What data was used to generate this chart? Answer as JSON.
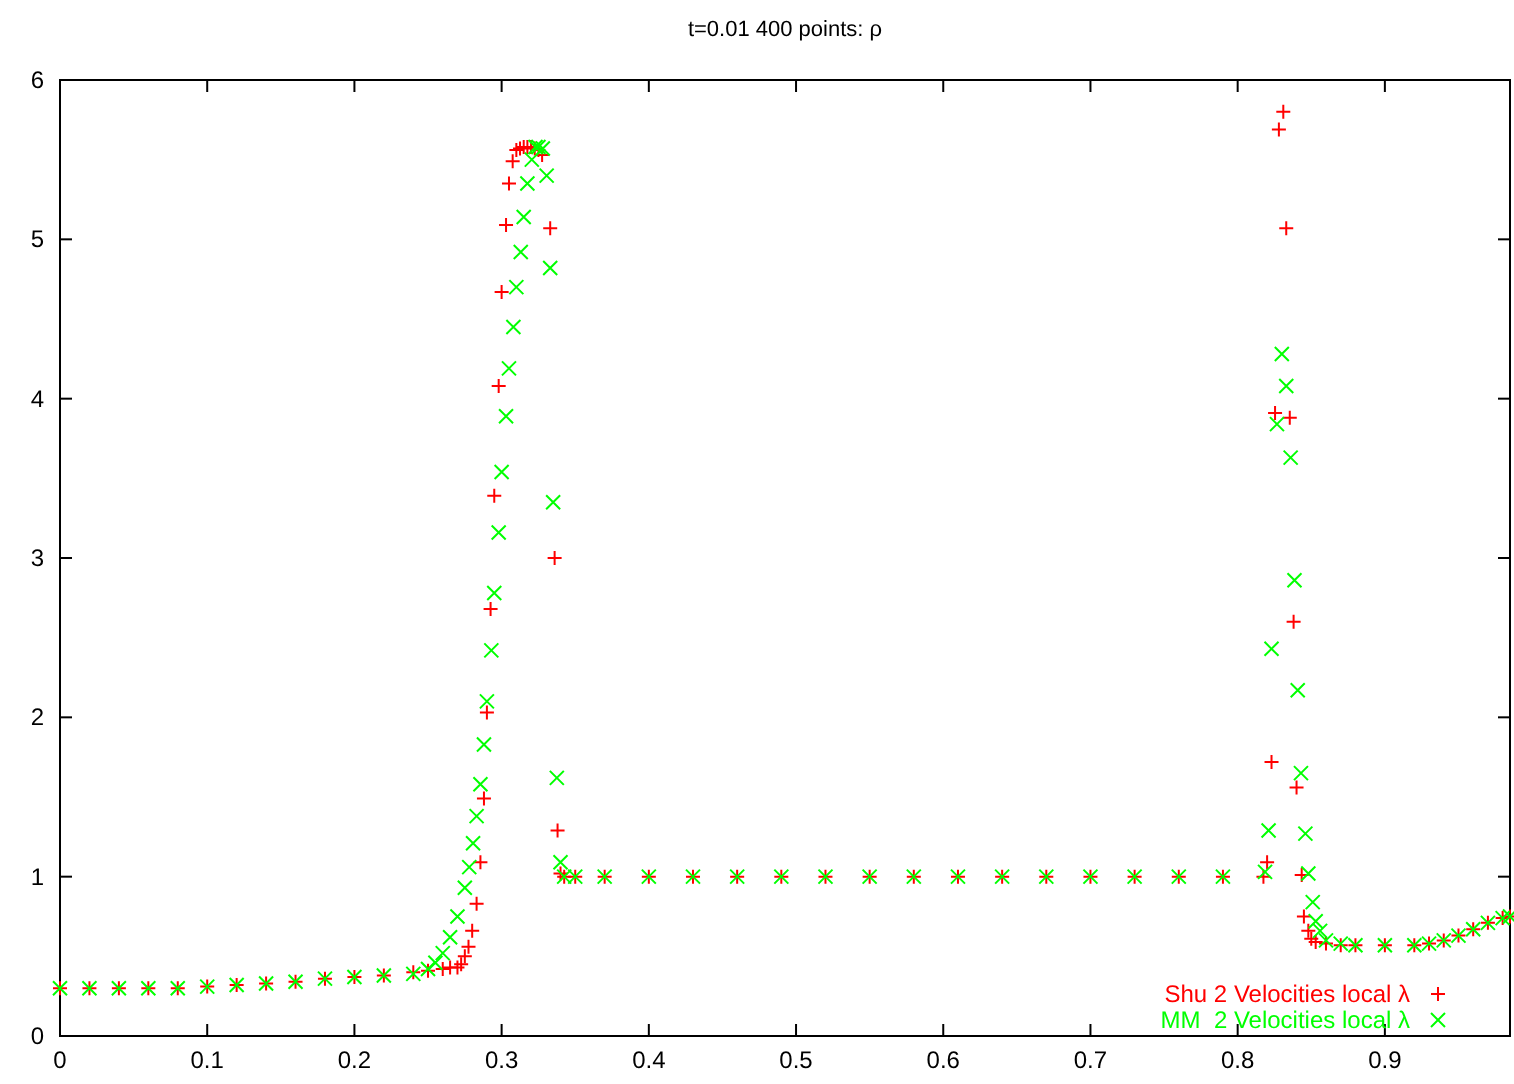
{
  "chart_data": {
    "type": "scatter",
    "title": "t=0.01 400 points: ρ",
    "xlim": [
      0,
      0.985
    ],
    "ylim": [
      0,
      6
    ],
    "xticks": [
      0,
      0.1,
      0.2,
      0.3,
      0.4,
      0.5,
      0.6,
      0.7,
      0.8,
      0.9
    ],
    "yticks": [
      0,
      1,
      2,
      3,
      4,
      5,
      6
    ],
    "grid": false,
    "legend": "bottom right",
    "series": [
      {
        "name": "Shu 2 Velocities local λ",
        "color": "#ff0000",
        "marker": "plus",
        "x": [
          0,
          0.02,
          0.04,
          0.06,
          0.08,
          0.1,
          0.12,
          0.14,
          0.16,
          0.18,
          0.2,
          0.22,
          0.24,
          0.25,
          0.26,
          0.265,
          0.27,
          0.2725,
          0.275,
          0.2775,
          0.28,
          0.283,
          0.2856,
          0.288,
          0.29,
          0.2925,
          0.295,
          0.298,
          0.3,
          0.303,
          0.305,
          0.3075,
          0.31,
          0.3125,
          0.315,
          0.3175,
          0.32,
          0.3225,
          0.325,
          0.3275,
          0.333,
          0.336,
          0.338,
          0.34,
          0.3425,
          0.35,
          0.37,
          0.4,
          0.43,
          0.46,
          0.49,
          0.52,
          0.55,
          0.58,
          0.61,
          0.64,
          0.67,
          0.7,
          0.73,
          0.76,
          0.79,
          0.8175,
          0.82,
          0.823,
          0.8254,
          0.828,
          0.831,
          0.833,
          0.8354,
          0.838,
          0.84,
          0.8435,
          0.845,
          0.848,
          0.85,
          0.853,
          0.86,
          0.87,
          0.88,
          0.9,
          0.92,
          0.93,
          0.94,
          0.95,
          0.96,
          0.97,
          0.98,
          0.985
        ],
        "values": [
          0.3,
          0.3,
          0.3,
          0.3,
          0.3,
          0.31,
          0.32,
          0.33,
          0.34,
          0.36,
          0.37,
          0.38,
          0.4,
          0.41,
          0.42,
          0.43,
          0.43,
          0.45,
          0.5,
          0.56,
          0.66,
          0.83,
          1.09,
          1.49,
          2.03,
          2.68,
          3.39,
          4.08,
          4.67,
          5.09,
          5.35,
          5.49,
          5.56,
          5.57,
          5.58,
          5.58,
          5.58,
          5.57,
          5.56,
          5.53,
          5.07,
          3,
          1.29,
          1.02,
          1,
          1,
          1,
          1,
          1,
          1,
          1,
          1,
          1,
          1,
          1,
          1,
          1,
          1,
          1,
          1,
          1,
          1,
          1.09,
          1.72,
          3.91,
          5.69,
          5.8,
          5.07,
          3.88,
          2.6,
          1.56,
          1.01,
          0.75,
          0.66,
          0.61,
          0.59,
          0.58,
          0.57,
          0.57,
          0.57,
          0.57,
          0.58,
          0.6,
          0.63,
          0.67,
          0.71,
          0.74,
          0.75
        ]
      },
      {
        "name": "MM  2 Velocities local λ",
        "color": "#00ff00",
        "marker": "cross",
        "x": [
          0,
          0.02,
          0.04,
          0.06,
          0.08,
          0.1,
          0.12,
          0.14,
          0.16,
          0.18,
          0.2,
          0.22,
          0.24,
          0.25,
          0.255,
          0.26,
          0.265,
          0.27,
          0.275,
          0.278,
          0.2806,
          0.283,
          0.2856,
          0.288,
          0.29,
          0.293,
          0.295,
          0.298,
          0.3,
          0.303,
          0.305,
          0.308,
          0.31,
          0.313,
          0.315,
          0.3175,
          0.3205,
          0.323,
          0.325,
          0.328,
          0.3306,
          0.333,
          0.335,
          0.3375,
          0.34,
          0.3425,
          0.35,
          0.37,
          0.4,
          0.43,
          0.46,
          0.49,
          0.52,
          0.55,
          0.58,
          0.61,
          0.64,
          0.67,
          0.7,
          0.73,
          0.76,
          0.79,
          0.8186,
          0.821,
          0.823,
          0.8267,
          0.83,
          0.833,
          0.836,
          0.8386,
          0.8408,
          0.843,
          0.846,
          0.848,
          0.851,
          0.853,
          0.856,
          0.86,
          0.87,
          0.88,
          0.9,
          0.92,
          0.93,
          0.94,
          0.95,
          0.96,
          0.97,
          0.98,
          0.985
        ],
        "values": [
          0.3,
          0.3,
          0.3,
          0.3,
          0.3,
          0.31,
          0.32,
          0.33,
          0.34,
          0.36,
          0.37,
          0.38,
          0.39,
          0.42,
          0.46,
          0.52,
          0.62,
          0.75,
          0.93,
          1.06,
          1.21,
          1.38,
          1.58,
          1.83,
          2.1,
          2.42,
          2.78,
          3.16,
          3.54,
          3.89,
          4.19,
          4.45,
          4.7,
          4.92,
          5.14,
          5.35,
          5.5,
          5.58,
          5.58,
          5.57,
          5.4,
          4.82,
          3.35,
          1.62,
          1.09,
          1,
          1,
          1,
          1,
          1,
          1,
          1,
          1,
          1,
          1,
          1,
          1,
          1,
          1,
          1,
          1,
          1,
          1.03,
          1.29,
          2.43,
          3.84,
          4.28,
          4.08,
          3.63,
          2.86,
          2.17,
          1.65,
          1.27,
          1.02,
          0.84,
          0.72,
          0.66,
          0.6,
          0.58,
          0.57,
          0.57,
          0.57,
          0.58,
          0.6,
          0.63,
          0.67,
          0.71,
          0.74,
          0.75
        ]
      }
    ]
  }
}
